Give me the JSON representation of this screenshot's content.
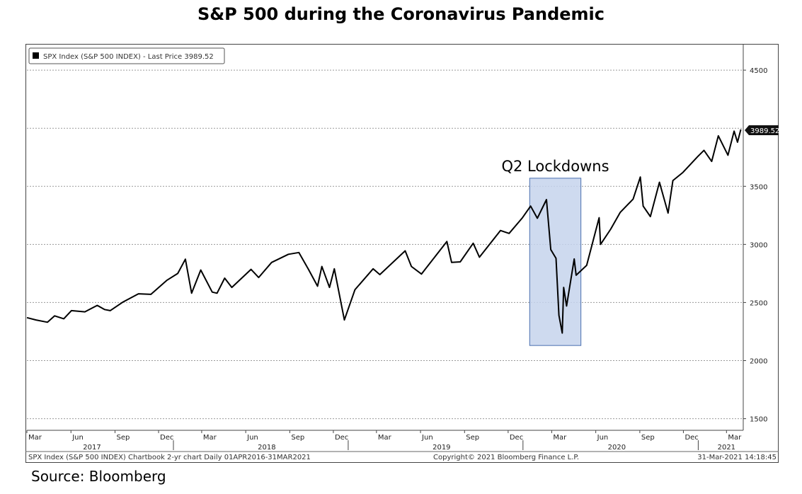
{
  "title": "S&P 500 during the Coronavirus Pandemic",
  "source": "Source: Bloomberg",
  "legend": "SPX Index (S&P 500 INDEX) - Last Price 3989.52",
  "last_price_label": "3989.52",
  "annotation": "Q2 Lockdowns",
  "footer_left": "SPX Index (S&P 500 INDEX) Chartbook 2-yr chart  Daily 01APR2016-31MAR2021",
  "footer_center": "Copyright© 2021 Bloomberg Finance L.P.",
  "footer_right": "31-Mar-2021 14:18:45",
  "colors": {
    "line": "#000000",
    "highlight_fill": "#c5d3ec",
    "highlight_stroke": "#4a6fb0",
    "grid": "#9a9a9a"
  },
  "chart_data": {
    "type": "line",
    "title": "S&P 500 during the Coronavirus Pandemic",
    "xlabel": "",
    "ylabel": "",
    "ylim": [
      1400,
      4720
    ],
    "y_ticks": [
      1500,
      2000,
      2500,
      3000,
      3500,
      4500
    ],
    "x_start": "2017-03-01",
    "x_end": "2021-04-05",
    "month_ticks": [
      {
        "date": "2017-03-01",
        "label": "Mar"
      },
      {
        "date": "2017-06-01",
        "label": "Jun"
      },
      {
        "date": "2017-09-01",
        "label": "Sep"
      },
      {
        "date": "2017-12-01",
        "label": "Dec"
      },
      {
        "date": "2018-03-01",
        "label": "Mar"
      },
      {
        "date": "2018-06-01",
        "label": "Jun"
      },
      {
        "date": "2018-09-01",
        "label": "Sep"
      },
      {
        "date": "2018-12-01",
        "label": "Dec"
      },
      {
        "date": "2019-03-01",
        "label": "Mar"
      },
      {
        "date": "2019-06-01",
        "label": "Jun"
      },
      {
        "date": "2019-09-01",
        "label": "Sep"
      },
      {
        "date": "2019-12-01",
        "label": "Dec"
      },
      {
        "date": "2020-03-01",
        "label": "Mar"
      },
      {
        "date": "2020-06-01",
        "label": "Jun"
      },
      {
        "date": "2020-09-01",
        "label": "Sep"
      },
      {
        "date": "2020-12-01",
        "label": "Dec"
      },
      {
        "date": "2021-03-01",
        "label": "Mar"
      }
    ],
    "year_labels": [
      {
        "date": "2017-07-15",
        "label": "2017"
      },
      {
        "date": "2018-07-15",
        "label": "2018"
      },
      {
        "date": "2019-07-15",
        "label": "2019"
      },
      {
        "date": "2020-07-15",
        "label": "2020"
      },
      {
        "date": "2021-03-01",
        "label": "2021"
      }
    ],
    "year_separators": [
      "2018-01-01",
      "2019-01-01",
      "2020-01-01",
      "2021-01-01"
    ],
    "highlight": {
      "x_start": "2020-01-15",
      "x_end": "2020-05-01",
      "y_start": 2130,
      "y_end": 3570
    },
    "series": [
      {
        "points": [
          [
            "2017-03-01",
            2370
          ],
          [
            "2017-03-20",
            2350
          ],
          [
            "2017-04-13",
            2330
          ],
          [
            "2017-04-28",
            2385
          ],
          [
            "2017-05-17",
            2360
          ],
          [
            "2017-06-02",
            2430
          ],
          [
            "2017-06-30",
            2420
          ],
          [
            "2017-07-26",
            2475
          ],
          [
            "2017-08-10",
            2440
          ],
          [
            "2017-08-22",
            2430
          ],
          [
            "2017-09-18",
            2505
          ],
          [
            "2017-10-20",
            2575
          ],
          [
            "2017-11-15",
            2570
          ],
          [
            "2017-12-18",
            2690
          ],
          [
            "2018-01-10",
            2750
          ],
          [
            "2018-01-26",
            2873
          ],
          [
            "2018-02-08",
            2580
          ],
          [
            "2018-02-27",
            2780
          ],
          [
            "2018-03-23",
            2590
          ],
          [
            "2018-04-02",
            2580
          ],
          [
            "2018-04-18",
            2710
          ],
          [
            "2018-05-03",
            2630
          ],
          [
            "2018-06-12",
            2785
          ],
          [
            "2018-06-28",
            2715
          ],
          [
            "2018-07-25",
            2845
          ],
          [
            "2018-08-29",
            2915
          ],
          [
            "2018-09-20",
            2930
          ],
          [
            "2018-10-10",
            2785
          ],
          [
            "2018-10-29",
            2640
          ],
          [
            "2018-11-07",
            2810
          ],
          [
            "2018-11-23",
            2630
          ],
          [
            "2018-12-03",
            2790
          ],
          [
            "2018-12-24",
            2350
          ],
          [
            "2019-01-15",
            2610
          ],
          [
            "2019-02-22",
            2790
          ],
          [
            "2019-03-08",
            2740
          ],
          [
            "2019-04-30",
            2945
          ],
          [
            "2019-05-13",
            2810
          ],
          [
            "2019-06-03",
            2745
          ],
          [
            "2019-07-26",
            3025
          ],
          [
            "2019-08-05",
            2845
          ],
          [
            "2019-08-23",
            2850
          ],
          [
            "2019-09-19",
            3010
          ],
          [
            "2019-10-02",
            2890
          ],
          [
            "2019-11-15",
            3120
          ],
          [
            "2019-12-03",
            3095
          ],
          [
            "2019-12-31",
            3230
          ],
          [
            "2020-01-17",
            3330
          ],
          [
            "2020-01-31",
            3225
          ],
          [
            "2020-02-19",
            3386
          ],
          [
            "2020-02-28",
            2955
          ],
          [
            "2020-03-10",
            2880
          ],
          [
            "2020-03-16",
            2390
          ],
          [
            "2020-03-23",
            2237
          ],
          [
            "2020-03-26",
            2630
          ],
          [
            "2020-04-01",
            2470
          ],
          [
            "2020-04-17",
            2875
          ],
          [
            "2020-04-21",
            2735
          ],
          [
            "2020-05-13",
            2820
          ],
          [
            "2020-06-08",
            3230
          ],
          [
            "2020-06-11",
            3000
          ],
          [
            "2020-07-02",
            3130
          ],
          [
            "2020-07-22",
            3275
          ],
          [
            "2020-08-18",
            3390
          ],
          [
            "2020-09-02",
            3580
          ],
          [
            "2020-09-08",
            3330
          ],
          [
            "2020-09-23",
            3240
          ],
          [
            "2020-10-12",
            3535
          ],
          [
            "2020-10-30",
            3270
          ],
          [
            "2020-11-09",
            3550
          ],
          [
            "2020-11-30",
            3620
          ],
          [
            "2020-12-31",
            3756
          ],
          [
            "2021-01-13",
            3810
          ],
          [
            "2021-01-29",
            3714
          ],
          [
            "2021-02-12",
            3935
          ],
          [
            "2021-03-04",
            3768
          ],
          [
            "2021-03-17",
            3975
          ],
          [
            "2021-03-24",
            3880
          ],
          [
            "2021-03-31",
            3989.52
          ]
        ]
      }
    ]
  }
}
